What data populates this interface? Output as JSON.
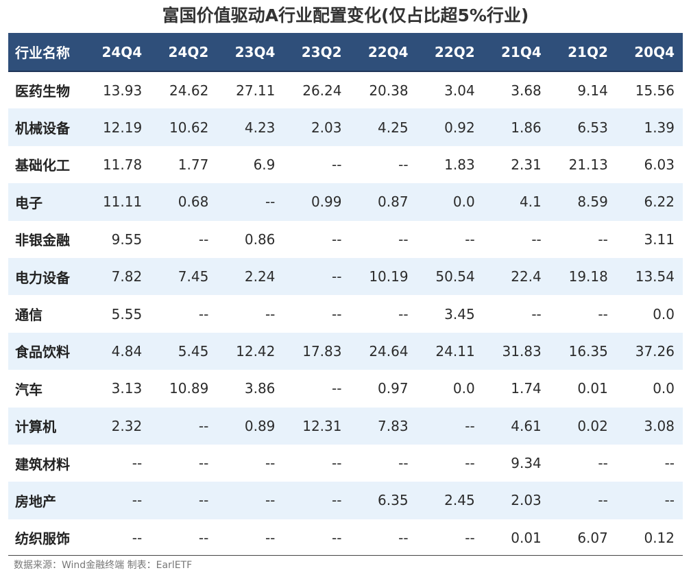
{
  "title": "富国价值驱动A行业配置变化(仅占比超5%行业)",
  "table": {
    "headers": [
      "行业名称",
      "24Q4",
      "24Q2",
      "23Q4",
      "23Q2",
      "22Q4",
      "22Q2",
      "21Q4",
      "21Q2",
      "20Q4"
    ],
    "rows": [
      [
        "医药生物",
        "13.93",
        "24.62",
        "27.11",
        "26.24",
        "20.38",
        "3.04",
        "3.68",
        "9.14",
        "15.56"
      ],
      [
        "机械设备",
        "12.19",
        "10.62",
        "4.23",
        "2.03",
        "4.25",
        "0.92",
        "1.86",
        "6.53",
        "1.39"
      ],
      [
        "基础化工",
        "11.78",
        "1.77",
        "6.9",
        "--",
        "--",
        "1.83",
        "2.31",
        "21.13",
        "6.03"
      ],
      [
        "电子",
        "11.11",
        "0.68",
        "--",
        "0.99",
        "0.87",
        "0.0",
        "4.1",
        "8.59",
        "6.22"
      ],
      [
        "非银金融",
        "9.55",
        "--",
        "0.86",
        "--",
        "--",
        "--",
        "--",
        "--",
        "3.11"
      ],
      [
        "电力设备",
        "7.82",
        "7.45",
        "2.24",
        "--",
        "10.19",
        "50.54",
        "22.4",
        "19.18",
        "13.54"
      ],
      [
        "通信",
        "5.55",
        "--",
        "--",
        "--",
        "--",
        "3.45",
        "--",
        "--",
        "0.0"
      ],
      [
        "食品饮料",
        "4.84",
        "5.45",
        "12.42",
        "17.83",
        "24.64",
        "24.11",
        "31.83",
        "16.35",
        "37.26"
      ],
      [
        "汽车",
        "3.13",
        "10.89",
        "3.86",
        "--",
        "0.97",
        "0.0",
        "1.74",
        "0.01",
        "0.0"
      ],
      [
        "计算机",
        "2.32",
        "--",
        "0.89",
        "12.31",
        "7.83",
        "--",
        "4.61",
        "0.02",
        "3.08"
      ],
      [
        "建筑材料",
        "--",
        "--",
        "--",
        "--",
        "--",
        "--",
        "9.34",
        "--",
        "--"
      ],
      [
        "房地产",
        "--",
        "--",
        "--",
        "--",
        "6.35",
        "2.45",
        "2.03",
        "--",
        "--"
      ],
      [
        "纺织服饰",
        "--",
        "--",
        "--",
        "--",
        "--",
        "--",
        "0.01",
        "6.07",
        "0.12"
      ]
    ]
  },
  "source": "数据来源：Wind金融终端 制表：EarlETF",
  "colors": {
    "header_bg": "#2f4f7a",
    "header_text": "#ffffff",
    "stripe_bg": "#e8f2fb",
    "text": "#2b2b2b"
  }
}
